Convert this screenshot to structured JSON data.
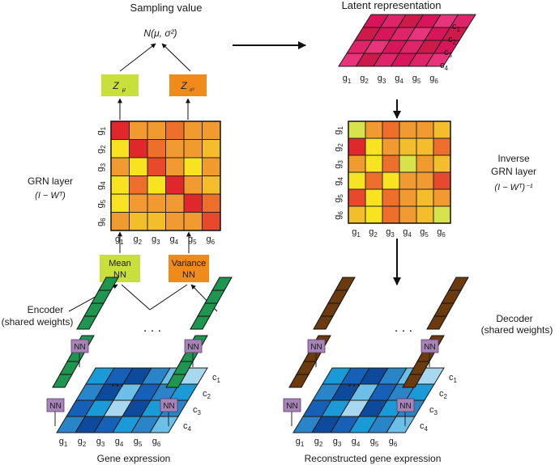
{
  "labels": {
    "sampling_value": "Sampling value",
    "latent_representation": "Latent representation",
    "normal": "N(μ, σ²)",
    "z_mu": "Z",
    "z_mu_sub": "μ",
    "z_sigma": "Z",
    "z_sigma_sub": "σ²",
    "grn_layer": "GRN layer",
    "grn_formula": "(I − Wᵀ)",
    "inverse_line1": "Inverse",
    "inverse_line2": "GRN layer",
    "inverse_formula": "(I − Wᵀ)⁻¹",
    "mean_nn_1": "Mean",
    "mean_nn_2": "NN",
    "variance_nn_1": "Variance",
    "variance_nn_2": "NN",
    "encoder_1": "Encoder",
    "encoder_2": "(shared weights)",
    "decoder_1": "Decoder",
    "decoder_2": "(shared weights)",
    "gene_expression": "Gene expression",
    "reconstructed": "Reconstructed gene expression",
    "nn": "NN",
    "dots": ". . .",
    "dots_small": "• • •"
  },
  "genes": [
    "g1",
    "g2",
    "g3",
    "g4",
    "g5",
    "g6"
  ],
  "cells": [
    "c1",
    "c2",
    "c3",
    "c4"
  ],
  "colors": {
    "heat": [
      "#e0282c",
      "#e8492c",
      "#ee6f2c",
      "#f19a30",
      "#f3bd2c",
      "#f7e320",
      "#d8e24a"
    ],
    "latent": [
      "#d8145a",
      "#e0246a",
      "#cc1a4a",
      "#e8347a"
    ],
    "blue": [
      "#0e4a9c",
      "#1760b8",
      "#2a84c8",
      "#1b9ad8",
      "#6cc0e8",
      "#a8d8f0"
    ],
    "green": "#1f9650",
    "brown": "#6b3a0e",
    "nn_box": "#a784b8",
    "z_mu_box": "#c8df3c",
    "z_sigma_box": "#f08a1a",
    "mean_box": "#c8df3c",
    "variance_box": "#f08a1a"
  },
  "grn_matrix": [
    [
      0,
      3,
      3,
      2,
      3,
      3
    ],
    [
      5,
      0,
      2,
      3,
      3,
      4
    ],
    [
      3,
      5,
      1,
      3,
      5,
      3
    ],
    [
      5,
      2,
      5,
      0,
      3,
      4
    ],
    [
      5,
      3,
      3,
      3,
      0,
      2
    ],
    [
      3,
      4,
      4,
      3,
      3,
      1
    ]
  ],
  "inverse_matrix": [
    [
      6,
      3,
      2,
      3,
      3,
      4
    ],
    [
      0,
      5,
      3,
      4,
      4,
      2
    ],
    [
      3,
      5,
      2,
      6,
      3,
      4
    ],
    [
      5,
      2,
      5,
      3,
      3,
      1
    ],
    [
      1,
      5,
      2,
      3,
      4,
      3
    ],
    [
      4,
      5,
      2,
      3,
      4,
      6
    ]
  ],
  "latent_matrix": [
    [
      0,
      1,
      2,
      0,
      3,
      1
    ],
    [
      2,
      0,
      1,
      3,
      0,
      2
    ],
    [
      1,
      3,
      0,
      1,
      2,
      0
    ],
    [
      3,
      2,
      1,
      0,
      1,
      3
    ]
  ],
  "expression_matrix": [
    [
      3,
      1,
      0,
      2,
      4,
      5
    ],
    [
      2,
      0,
      4,
      1,
      2,
      3
    ],
    [
      1,
      3,
      5,
      0,
      3,
      2
    ],
    [
      2,
      0,
      1,
      3,
      2,
      4
    ]
  ]
}
